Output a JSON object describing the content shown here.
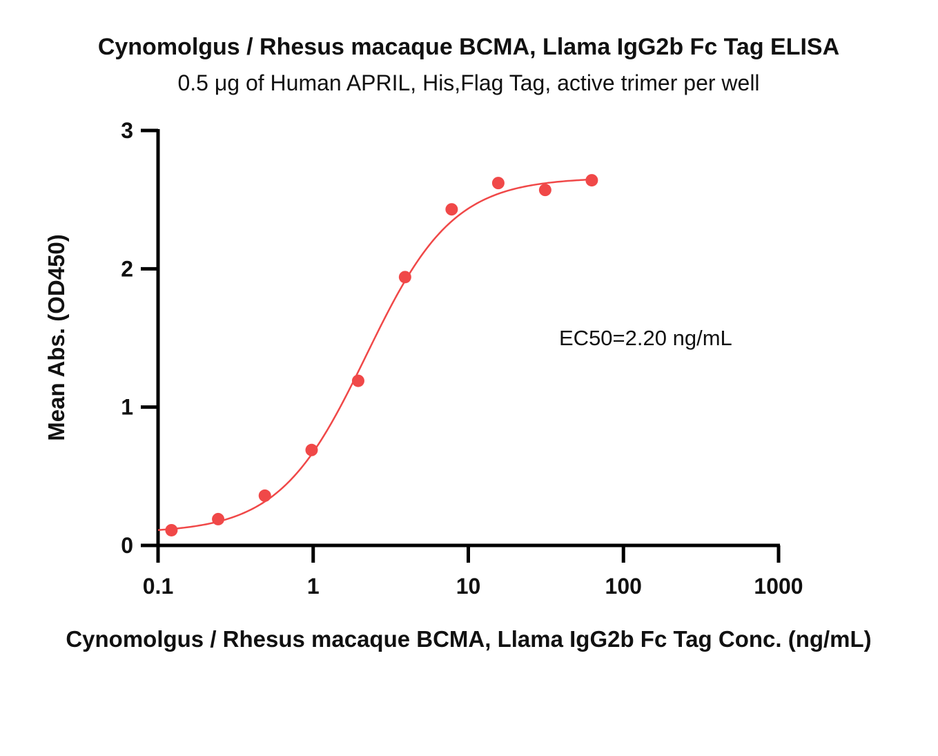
{
  "chart_data": {
    "type": "scatter",
    "title": "Cynomolgus / Rhesus macaque BCMA, Llama IgG2b Fc Tag ELISA",
    "subtitle": "0.5 μg of Human APRIL, His,Flag Tag, active trimer per well",
    "xlabel": "Cynomolgus / Rhesus macaque BCMA, Llama IgG2b Fc Tag Conc. (ng/mL)",
    "ylabel": "Mean Abs. (OD450)",
    "xscale": "log",
    "xlim": [
      0.1,
      1000
    ],
    "ylim": [
      0,
      3
    ],
    "xticks": [
      "0.1",
      "1",
      "10",
      "100",
      "1000"
    ],
    "yticks": [
      "0",
      "1",
      "2",
      "3"
    ],
    "grid": false,
    "annotation": "EC50=2.20 ng/mL",
    "marker_color": "#f04848",
    "series": [
      {
        "x": [
          0.122,
          0.244,
          0.488,
          0.977,
          1.95,
          3.91,
          7.81,
          15.6,
          31.3,
          62.5
        ],
        "y": [
          0.11,
          0.19,
          0.36,
          0.69,
          1.19,
          1.94,
          2.43,
          2.62,
          2.57,
          2.64
        ]
      }
    ],
    "fit": {
      "model": "4PL",
      "bottom": 0.09,
      "top": 2.66,
      "ec50": 2.2,
      "hill": 1.55
    }
  }
}
